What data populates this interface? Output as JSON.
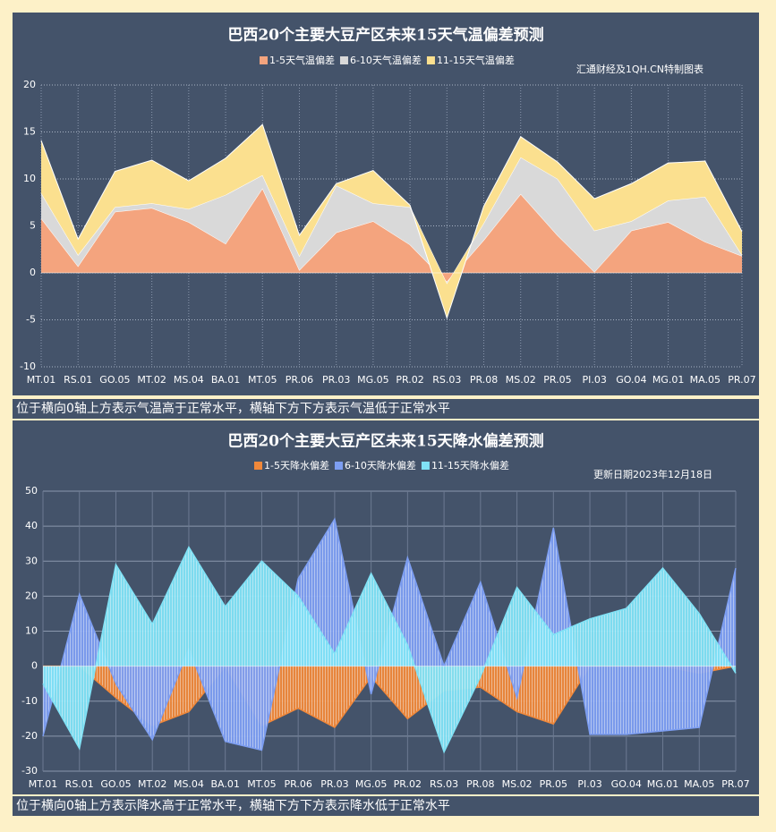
{
  "chart_data": [
    {
      "type": "area",
      "stacked": true,
      "title": "巴西20个主要大豆产区未来15天气温偏差预测",
      "subtitle": "汇通财经及1QH.CN特制图表",
      "note": "位于横向0轴上方表示气温高于正常水平，横轴下方下方表示气温低于正常水平",
      "categories": [
        "MT.01",
        "RS.01",
        "GO.05",
        "MT.02",
        "MS.04",
        "BA.01",
        "MT.05",
        "PR.06",
        "PR.03",
        "MG.05",
        "PR.02",
        "RS.03",
        "PR.08",
        "MS.02",
        "PR.05",
        "PI.03",
        "GO.04",
        "MG.01",
        "MA.05",
        "PR.07"
      ],
      "series": [
        {
          "name": "1-5天气温偏差",
          "color": "#f4a47e",
          "values": [
            5.8,
            0.7,
            6.5,
            6.9,
            5.4,
            3.1,
            9.0,
            0.3,
            4.3,
            5.5,
            3.0,
            -1.0,
            3.5,
            8.4,
            4.0,
            0.1,
            4.5,
            5.4,
            3.3,
            1.8
          ]
        },
        {
          "name": "6-10天气温偏差",
          "color": "#d9d9d9",
          "values": [
            2.7,
            1.2,
            0.5,
            0.5,
            1.4,
            5.2,
            1.4,
            1.5,
            5.0,
            1.9,
            4.0,
            -0.2,
            1.8,
            3.9,
            6.0,
            4.4,
            1.0,
            2.3,
            4.8,
            0.1
          ]
        },
        {
          "name": "11-15天气温偏差",
          "color": "#fbe08f",
          "values": [
            5.6,
            1.7,
            3.8,
            4.6,
            3.0,
            3.9,
            5.4,
            2.2,
            0.2,
            3.5,
            0.2,
            -3.6,
            1.8,
            2.2,
            1.8,
            3.4,
            4.0,
            4.0,
            3.8,
            2.5
          ]
        }
      ],
      "ylim": [
        -10,
        20
      ],
      "yticks": [
        -10,
        -5,
        0,
        5,
        10,
        15,
        20
      ],
      "grid": true
    },
    {
      "type": "area",
      "stacked": false,
      "title": "巴西20个主要大豆产区未来15天降水偏差预测",
      "subtitle": "更新日期2023年12月18日",
      "note": "位于横向0轴上方表示降水高于正常水平，横轴下方下方表示降水低于正常水平",
      "categories": [
        "MT.01",
        "RS.01",
        "GO.05",
        "MT.02",
        "MS.04",
        "BA.01",
        "MT.05",
        "PR.06",
        "PR.03",
        "MG.05",
        "PR.02",
        "RS.03",
        "PR.08",
        "MS.02",
        "PR.05",
        "PI.03",
        "GO.04",
        "MG.01",
        "MA.05",
        "PR.07"
      ],
      "series": [
        {
          "name": "1-5天降水偏差",
          "color": "#f0883a",
          "values": [
            0,
            0,
            -9,
            -17,
            -13,
            0,
            -17,
            -12,
            -17.5,
            -3,
            -15,
            -7,
            -6,
            -13,
            -16.5,
            0,
            0,
            0,
            -2,
            0
          ]
        },
        {
          "name": "6-10天降水偏差",
          "color": "#7d9ef2",
          "values": [
            -20,
            20.5,
            -5,
            -21,
            5,
            -21.5,
            -24,
            25,
            42,
            -8,
            31,
            0,
            24,
            -9,
            39.5,
            -19.5,
            -19.5,
            -18.5,
            -17.5,
            28
          ]
        },
        {
          "name": "11-15天降水偏差",
          "color": "#80e2f6",
          "values": [
            -5,
            -23.5,
            29,
            12,
            34,
            17,
            30,
            20,
            3.5,
            26.5,
            6,
            -24.5,
            -3,
            22.5,
            9,
            13.5,
            16.5,
            28,
            15,
            -2
          ]
        }
      ],
      "ylim": [
        -30,
        50
      ],
      "yticks": [
        -30,
        -20,
        -10,
        0,
        10,
        20,
        30,
        40,
        50
      ],
      "grid": true
    }
  ]
}
